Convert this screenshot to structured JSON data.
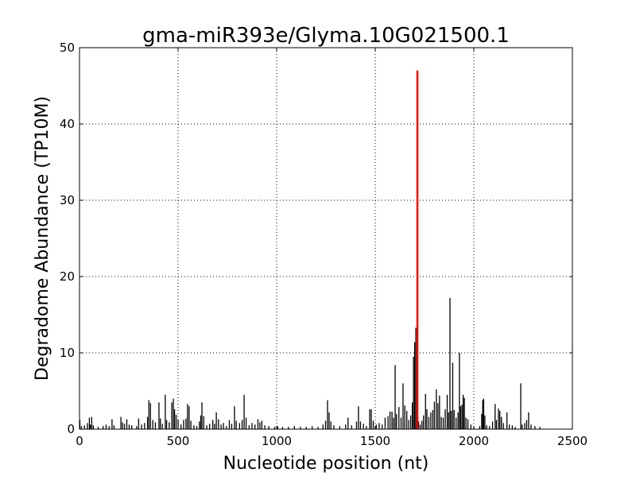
{
  "chart_data": {
    "type": "bar",
    "title": "gma-miR393e/Glyma.10G021500.1",
    "xlabel": "Nucleotide position (nt)",
    "ylabel": "Degradome Abundance (TP10M)",
    "xlim": [
      0,
      2500
    ],
    "ylim": [
      0,
      50
    ],
    "xticks": [
      0,
      500,
      1000,
      1500,
      2000,
      2500
    ],
    "yticks": [
      0,
      10,
      20,
      30,
      40,
      50
    ],
    "grid": true,
    "colors": {
      "background": "#000000",
      "highlight": "#ff0000"
    },
    "highlight": {
      "x": 1714,
      "y": 47.0
    },
    "points": [
      [
        2,
        1.2
      ],
      [
        10,
        0.4
      ],
      [
        25,
        0.5
      ],
      [
        40,
        0.8
      ],
      [
        50,
        1.5
      ],
      [
        55,
        0.6
      ],
      [
        62,
        1.6
      ],
      [
        70,
        0.5
      ],
      [
        95,
        0.3
      ],
      [
        120,
        0.4
      ],
      [
        135,
        0.6
      ],
      [
        150,
        0.4
      ],
      [
        165,
        1.3
      ],
      [
        175,
        0.5
      ],
      [
        210,
        1.6
      ],
      [
        218,
        0.9
      ],
      [
        228,
        0.7
      ],
      [
        240,
        1.3
      ],
      [
        252,
        0.6
      ],
      [
        265,
        0.5
      ],
      [
        290,
        0.4
      ],
      [
        300,
        1.4
      ],
      [
        315,
        0.6
      ],
      [
        330,
        0.8
      ],
      [
        345,
        1.6
      ],
      [
        352,
        3.8
      ],
      [
        360,
        3.4
      ],
      [
        372,
        1.2
      ],
      [
        385,
        0.9
      ],
      [
        403,
        3.5
      ],
      [
        410,
        1.4
      ],
      [
        420,
        0.7
      ],
      [
        435,
        4.5
      ],
      [
        442,
        1.2
      ],
      [
        455,
        0.9
      ],
      [
        468,
        3.5
      ],
      [
        476,
        4.0
      ],
      [
        482,
        2.6
      ],
      [
        490,
        1.9
      ],
      [
        500,
        1.3
      ],
      [
        515,
        0.6
      ],
      [
        528,
        1.2
      ],
      [
        540,
        1.4
      ],
      [
        548,
        3.3
      ],
      [
        556,
        3.0
      ],
      [
        565,
        1.1
      ],
      [
        580,
        0.5
      ],
      [
        595,
        0.4
      ],
      [
        608,
        1.0
      ],
      [
        615,
        1.8
      ],
      [
        621,
        3.5
      ],
      [
        630,
        1.7
      ],
      [
        645,
        0.5
      ],
      [
        660,
        0.7
      ],
      [
        676,
        1.2
      ],
      [
        685,
        0.7
      ],
      [
        694,
        2.2
      ],
      [
        705,
        1.3
      ],
      [
        718,
        0.6
      ],
      [
        730,
        0.8
      ],
      [
        745,
        0.4
      ],
      [
        760,
        1.2
      ],
      [
        772,
        0.7
      ],
      [
        786,
        3.0
      ],
      [
        795,
        1.1
      ],
      [
        812,
        0.8
      ],
      [
        825,
        1.2
      ],
      [
        835,
        4.5
      ],
      [
        845,
        1.5
      ],
      [
        860,
        0.5
      ],
      [
        875,
        0.8
      ],
      [
        890,
        0.6
      ],
      [
        905,
        1.3
      ],
      [
        915,
        0.9
      ],
      [
        925,
        1.1
      ],
      [
        940,
        0.5
      ],
      [
        960,
        0.4
      ],
      [
        990,
        0.3
      ],
      [
        1005,
        0.4
      ],
      [
        1030,
        0.3
      ],
      [
        1060,
        0.3
      ],
      [
        1090,
        0.4
      ],
      [
        1120,
        0.3
      ],
      [
        1150,
        0.3
      ],
      [
        1180,
        0.4
      ],
      [
        1210,
        0.3
      ],
      [
        1235,
        0.6
      ],
      [
        1248,
        1.1
      ],
      [
        1258,
        3.8
      ],
      [
        1266,
        2.2
      ],
      [
        1275,
        1.0
      ],
      [
        1290,
        0.5
      ],
      [
        1320,
        0.4
      ],
      [
        1350,
        0.6
      ],
      [
        1362,
        1.5
      ],
      [
        1380,
        0.5
      ],
      [
        1405,
        1.0
      ],
      [
        1415,
        3.0
      ],
      [
        1425,
        1.0
      ],
      [
        1440,
        0.7
      ],
      [
        1455,
        0.4
      ],
      [
        1472,
        2.6
      ],
      [
        1480,
        2.6
      ],
      [
        1490,
        1.1
      ],
      [
        1505,
        0.6
      ],
      [
        1520,
        0.8
      ],
      [
        1535,
        0.6
      ],
      [
        1550,
        1.5
      ],
      [
        1565,
        1.7
      ],
      [
        1575,
        2.3
      ],
      [
        1585,
        2.3
      ],
      [
        1593,
        1.5
      ],
      [
        1601,
        8.4
      ],
      [
        1608,
        2.0
      ],
      [
        1620,
        2.9
      ],
      [
        1631,
        1.5
      ],
      [
        1641,
        6.0
      ],
      [
        1650,
        3.1
      ],
      [
        1660,
        2.4
      ],
      [
        1670,
        1.2
      ],
      [
        1680,
        1.8
      ],
      [
        1688,
        3.5
      ],
      [
        1694,
        9.5
      ],
      [
        1700,
        11.4
      ],
      [
        1706,
        13.3
      ],
      [
        1720,
        1.0
      ],
      [
        1728,
        0.6
      ],
      [
        1737,
        1.1
      ],
      [
        1745,
        1.8
      ],
      [
        1755,
        4.6
      ],
      [
        1762,
        2.6
      ],
      [
        1772,
        1.6
      ],
      [
        1782,
        2.2
      ],
      [
        1792,
        2.5
      ],
      [
        1800,
        3.6
      ],
      [
        1810,
        5.2
      ],
      [
        1818,
        3.4
      ],
      [
        1826,
        4.4
      ],
      [
        1835,
        1.6
      ],
      [
        1845,
        1.5
      ],
      [
        1855,
        2.6
      ],
      [
        1865,
        4.5
      ],
      [
        1872,
        2.2
      ],
      [
        1879,
        17.2
      ],
      [
        1885,
        2.4
      ],
      [
        1893,
        8.7
      ],
      [
        1900,
        2.5
      ],
      [
        1910,
        1.5
      ],
      [
        1920,
        2.2
      ],
      [
        1927,
        10.0
      ],
      [
        1933,
        3.0
      ],
      [
        1940,
        3.2
      ],
      [
        1946,
        4.5
      ],
      [
        1952,
        4.1
      ],
      [
        1960,
        1.5
      ],
      [
        1970,
        1.3
      ],
      [
        1985,
        0.6
      ],
      [
        2000,
        0.3
      ],
      [
        2030,
        0.4
      ],
      [
        2040,
        2.0
      ],
      [
        2045,
        3.8
      ],
      [
        2050,
        4.0
      ],
      [
        2056,
        1.8
      ],
      [
        2065,
        0.5
      ],
      [
        2080,
        0.4
      ],
      [
        2095,
        1.0
      ],
      [
        2108,
        3.3
      ],
      [
        2115,
        1.2
      ],
      [
        2125,
        2.7
      ],
      [
        2132,
        2.4
      ],
      [
        2140,
        1.6
      ],
      [
        2150,
        0.8
      ],
      [
        2168,
        2.2
      ],
      [
        2180,
        0.6
      ],
      [
        2195,
        0.5
      ],
      [
        2210,
        0.3
      ],
      [
        2238,
        6.0
      ],
      [
        2245,
        0.6
      ],
      [
        2258,
        0.8
      ],
      [
        2268,
        1.2
      ],
      [
        2278,
        2.2
      ],
      [
        2290,
        0.6
      ],
      [
        2310,
        0.4
      ],
      [
        2335,
        0.3
      ]
    ]
  }
}
